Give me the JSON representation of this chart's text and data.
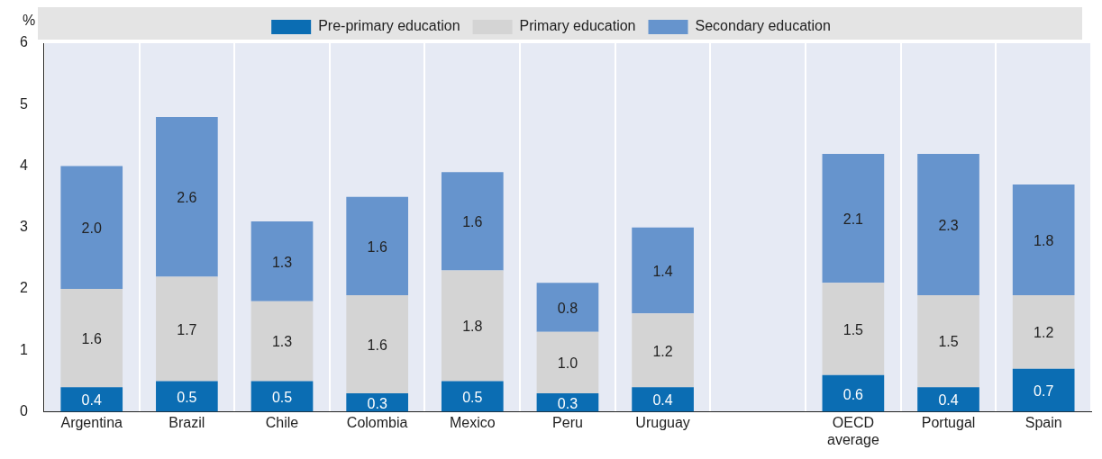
{
  "chart_data": {
    "type": "bar",
    "stacked": true,
    "ylabel": "%",
    "categories": [
      "Argentina",
      "Brazil",
      "Chile",
      "Colombia",
      "Mexico",
      "Peru",
      "Uruguay",
      null,
      "OECD average",
      "Portugal",
      "Spain"
    ],
    "series": [
      {
        "name": "Pre-primary education",
        "color": "#0b6db3",
        "values": [
          0.4,
          0.5,
          0.5,
          0.3,
          0.5,
          0.3,
          0.4,
          null,
          0.6,
          0.4,
          0.7
        ],
        "value_labels": [
          "0.4",
          "0.5",
          "0.5",
          "0.3",
          "0.5",
          "0.3",
          "0.4",
          null,
          "0.6",
          "0.4",
          "0.7"
        ]
      },
      {
        "name": "Primary education",
        "color": "#d4d4d4",
        "values": [
          1.6,
          1.7,
          1.3,
          1.6,
          1.8,
          1.0,
          1.2,
          null,
          1.5,
          1.5,
          1.2
        ],
        "value_labels": [
          "1.6",
          "1.7",
          "1.3",
          "1.6",
          "1.8",
          "1.0",
          "1.2",
          null,
          "1.5",
          "1.5",
          "1.2"
        ]
      },
      {
        "name": "Secondary education",
        "color": "#6694cd",
        "values": [
          2.0,
          2.6,
          1.3,
          1.6,
          1.6,
          0.8,
          1.4,
          null,
          2.1,
          2.3,
          1.8
        ],
        "value_labels": [
          "2.0",
          "2.6",
          "1.3",
          "1.6",
          "1.6",
          "0.8",
          "1.4",
          null,
          "2.1",
          "2.3",
          "1.8"
        ]
      }
    ],
    "ylim": [
      0,
      6
    ],
    "yticks": [
      0,
      1,
      2,
      3,
      4,
      5,
      6
    ],
    "grid": "x",
    "legend": "top"
  }
}
